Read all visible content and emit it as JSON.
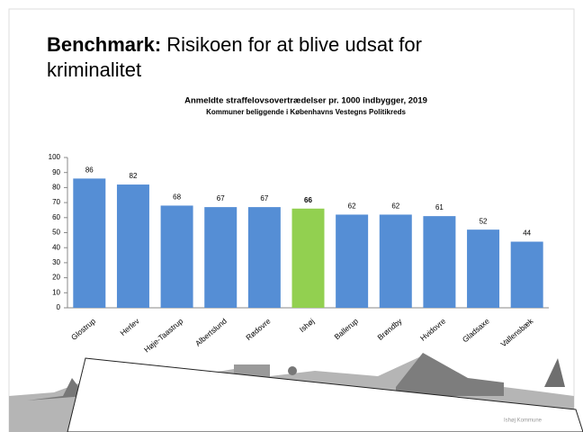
{
  "slide_title": {
    "bold": "Benchmark:",
    "rest": "Risikoen for at blive udsat for",
    "line2": "kriminalitet"
  },
  "chart_data": {
    "type": "bar",
    "title": "Anmeldte straffelovsovertrædelser pr. 1000 indbygger, 2019",
    "subtitle": "Kommuner beliggende i Københavns Vestegns Politikreds",
    "categories": [
      "Glostrup",
      "Herlev",
      "Høje-Taastrup",
      "Albertslund",
      "Rødovre",
      "Ishøj",
      "Ballerup",
      "Brøndby",
      "Hvidovre",
      "Gladsaxe",
      "Vallensbæk"
    ],
    "values": [
      86,
      82,
      68,
      67,
      67,
      66,
      62,
      62,
      61,
      52,
      44
    ],
    "colors": [
      "#558ed5",
      "#558ed5",
      "#558ed5",
      "#558ed5",
      "#558ed5",
      "#92d050",
      "#558ed5",
      "#558ed5",
      "#558ed5",
      "#558ed5",
      "#558ed5"
    ],
    "ylim": [
      0,
      100
    ],
    "yticks": [
      0,
      10,
      20,
      30,
      40,
      50,
      60,
      70,
      80,
      90,
      100
    ],
    "grid": false
  },
  "footer": "Ishøj Kommune"
}
